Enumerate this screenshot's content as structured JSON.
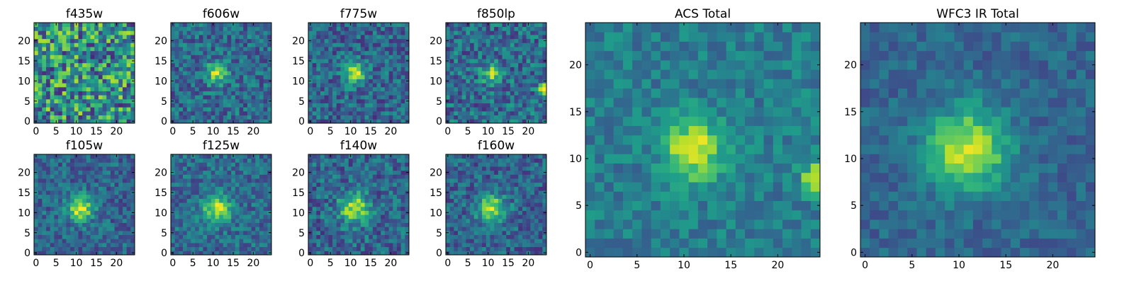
{
  "figure": {
    "background": "#ffffff",
    "colormap_stops": [
      "#440154",
      "#482878",
      "#3e4a89",
      "#31688e",
      "#26828e",
      "#1f9e89",
      "#35b779",
      "#6ece58",
      "#b5de2b",
      "#fde725"
    ]
  },
  "chart_data": [
    {
      "type": "heatmap",
      "title": "f435w",
      "grid_size": 25,
      "xticks": [
        0,
        5,
        10,
        15,
        20
      ],
      "yticks": [
        0,
        5,
        10,
        15,
        20
      ],
      "source": {
        "center": [
          11,
          12
        ],
        "peak": 0.0,
        "width": 2.0
      },
      "noise": 0.38,
      "baseline": 0.5,
      "seed": 11
    },
    {
      "type": "heatmap",
      "title": "f606w",
      "grid_size": 25,
      "xticks": [
        0,
        5,
        10,
        15,
        20
      ],
      "yticks": [
        0,
        5,
        10,
        15,
        20
      ],
      "source": {
        "center": [
          11,
          12
        ],
        "peak": 0.55,
        "width": 1.8
      },
      "noise": 0.2,
      "baseline": 0.35,
      "seed": 23
    },
    {
      "type": "heatmap",
      "title": "f775w",
      "grid_size": 25,
      "xticks": [
        0,
        5,
        10,
        15,
        20
      ],
      "yticks": [
        0,
        5,
        10,
        15,
        20
      ],
      "source": {
        "center": [
          11,
          12
        ],
        "peak": 0.6,
        "width": 1.8
      },
      "noise": 0.2,
      "baseline": 0.33,
      "seed": 37
    },
    {
      "type": "heatmap",
      "title": "f850lp",
      "grid_size": 25,
      "xticks": [
        0,
        5,
        10,
        15,
        20
      ],
      "yticks": [
        0,
        5,
        10,
        15,
        20
      ],
      "source": {
        "center": [
          11,
          12
        ],
        "peak": 0.45,
        "width": 1.7
      },
      "extra_source": {
        "center": [
          24,
          8
        ],
        "peak": 0.6,
        "width": 1.0
      },
      "noise": 0.22,
      "baseline": 0.35,
      "seed": 41
    },
    {
      "type": "heatmap",
      "title": "f105w",
      "grid_size": 25,
      "xticks": [
        0,
        5,
        10,
        15,
        20
      ],
      "yticks": [
        0,
        5,
        10,
        15,
        20
      ],
      "source": {
        "center": [
          11,
          11
        ],
        "peak": 0.6,
        "width": 2.2
      },
      "noise": 0.17,
      "baseline": 0.33,
      "seed": 53
    },
    {
      "type": "heatmap",
      "title": "f125w",
      "grid_size": 25,
      "xticks": [
        0,
        5,
        10,
        15,
        20
      ],
      "yticks": [
        0,
        5,
        10,
        15,
        20
      ],
      "source": {
        "center": [
          11,
          11
        ],
        "peak": 0.55,
        "width": 2.4
      },
      "noise": 0.17,
      "baseline": 0.35,
      "seed": 67
    },
    {
      "type": "heatmap",
      "title": "f140w",
      "grid_size": 25,
      "xticks": [
        0,
        5,
        10,
        15,
        20
      ],
      "yticks": [
        0,
        5,
        10,
        15,
        20
      ],
      "source": {
        "center": [
          11,
          11
        ],
        "peak": 0.55,
        "width": 2.6
      },
      "noise": 0.2,
      "baseline": 0.33,
      "seed": 79
    },
    {
      "type": "heatmap",
      "title": "f160w",
      "grid_size": 25,
      "xticks": [
        0,
        5,
        10,
        15,
        20
      ],
      "yticks": [
        0,
        5,
        10,
        15,
        20
      ],
      "source": {
        "center": [
          11,
          11
        ],
        "peak": 0.58,
        "width": 2.4
      },
      "noise": 0.18,
      "baseline": 0.32,
      "seed": 83
    },
    {
      "type": "heatmap",
      "title": "ACS Total",
      "grid_size": 25,
      "xticks": [
        0,
        5,
        10,
        15,
        20
      ],
      "yticks": [
        0,
        5,
        10,
        15,
        20
      ],
      "source": {
        "center": [
          11,
          11
        ],
        "peak": 0.55,
        "width": 2.2
      },
      "extra_source": {
        "center": [
          24,
          8
        ],
        "peak": 0.55,
        "width": 1.0
      },
      "noise": 0.13,
      "baseline": 0.42,
      "seed": 97
    },
    {
      "type": "heatmap",
      "title": "WFC3 IR Total",
      "grid_size": 25,
      "xticks": [
        0,
        5,
        10,
        15,
        20
      ],
      "yticks": [
        0,
        5,
        10,
        15,
        20
      ],
      "source": {
        "center": [
          11,
          11
        ],
        "peak": 0.6,
        "width": 3.0
      },
      "noise": 0.11,
      "baseline": 0.33,
      "seed": 101
    }
  ]
}
